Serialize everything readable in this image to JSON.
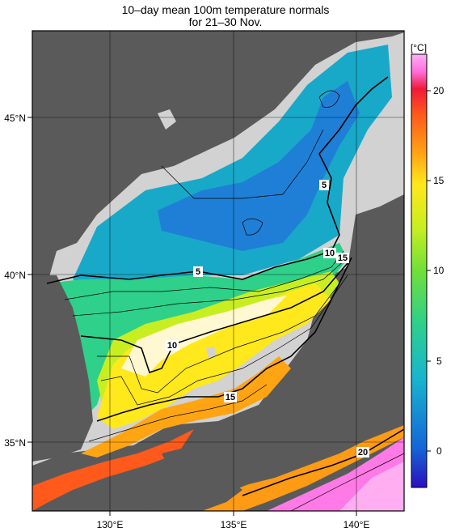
{
  "title": {
    "line1": "10–day mean 100m temperature normals",
    "line2": "for 21–30 Nov."
  },
  "map": {
    "lon_ticks": [
      "130°E",
      "135°E",
      "140°E"
    ],
    "lat_ticks": [
      "45°N",
      "40°N",
      "35°N"
    ],
    "contour_labels": [
      "5",
      "5",
      "10",
      "15",
      "10",
      "15",
      "20"
    ],
    "land_color": "#5a5a5a",
    "nodata_color": "#d2d2d2"
  },
  "colorbar": {
    "unit": "[°C]",
    "ticks": [
      "20",
      "15",
      "10",
      "5",
      "0"
    ],
    "range": [
      -2,
      22
    ],
    "colors": [
      "#2a0fbf",
      "#1565d6",
      "#18b4d0",
      "#2ed08a",
      "#6fe03a",
      "#c8ee22",
      "#ffe81c",
      "#ffa514",
      "#ff5a1c",
      "#ee1a38",
      "#ff6edc",
      "#ffb0f5"
    ]
  }
}
